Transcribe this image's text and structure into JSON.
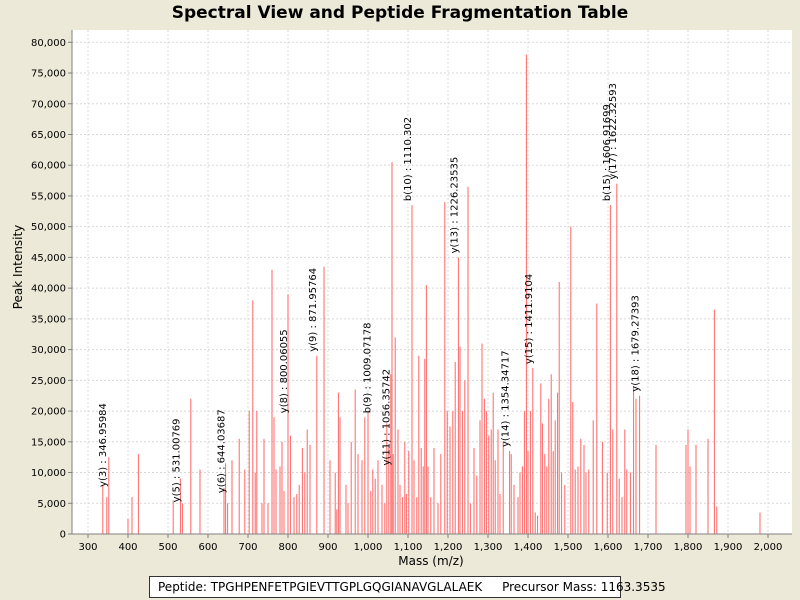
{
  "chart_data": {
    "type": "bar",
    "title": "Spectral View and Peptide Fragmentation Table",
    "xlabel": "Mass (m/z)",
    "ylabel": "Peak Intensity",
    "xlim": [
      260,
      2060
    ],
    "ylim": [
      0,
      82000
    ],
    "xticks": [
      300,
      400,
      500,
      600,
      700,
      800,
      900,
      1000,
      1100,
      1200,
      1300,
      1400,
      1500,
      1600,
      1700,
      1800,
      1900,
      2000
    ],
    "xtick_labels": [
      "300",
      "400",
      "500",
      "600",
      "700",
      "800",
      "900",
      "1,000",
      "1,100",
      "1,200",
      "1,300",
      "1,400",
      "1,500",
      "1,600",
      "1,700",
      "1,800",
      "1,900",
      "2,000"
    ],
    "yticks": [
      0,
      5000,
      10000,
      15000,
      20000,
      25000,
      30000,
      35000,
      40000,
      45000,
      50000,
      55000,
      60000,
      65000,
      70000,
      75000,
      80000
    ],
    "ytick_labels": [
      "0",
      "5,000",
      "10,000",
      "15,000",
      "20,000",
      "25,000",
      "30,000",
      "35,000",
      "40,000",
      "45,000",
      "50,000",
      "55,000",
      "60,000",
      "65,000",
      "70,000",
      "75,000",
      "80,000"
    ],
    "grid": true,
    "bar_color": "#ff6666",
    "peaks": [
      [
        337,
        8000
      ],
      [
        347,
        6000
      ],
      [
        352,
        12500
      ],
      [
        400,
        2500
      ],
      [
        410,
        6000
      ],
      [
        426,
        13000
      ],
      [
        513,
        5500
      ],
      [
        531,
        9000
      ],
      [
        536,
        5000
      ],
      [
        557,
        22000
      ],
      [
        580,
        10500
      ],
      [
        640,
        7500
      ],
      [
        644,
        11500
      ],
      [
        649,
        5000
      ],
      [
        660,
        12000
      ],
      [
        678,
        15500
      ],
      [
        692,
        10500
      ],
      [
        703,
        20000
      ],
      [
        712,
        38000
      ],
      [
        718,
        10000
      ],
      [
        722,
        20000
      ],
      [
        735,
        5000
      ],
      [
        740,
        15500
      ],
      [
        750,
        5000
      ],
      [
        760,
        43000
      ],
      [
        765,
        19000
      ],
      [
        770,
        10500
      ],
      [
        780,
        11000
      ],
      [
        785,
        15000
      ],
      [
        790,
        7000
      ],
      [
        800,
        39000
      ],
      [
        806,
        16000
      ],
      [
        815,
        6000
      ],
      [
        822,
        6500
      ],
      [
        828,
        8000
      ],
      [
        836,
        14000
      ],
      [
        842,
        10000
      ],
      [
        848,
        17000
      ],
      [
        855,
        14500
      ],
      [
        872,
        29000
      ],
      [
        890,
        43500
      ],
      [
        905,
        12000
      ],
      [
        918,
        10000
      ],
      [
        922,
        4000
      ],
      [
        926,
        23000
      ],
      [
        930,
        19000
      ],
      [
        945,
        8000
      ],
      [
        950,
        5000
      ],
      [
        958,
        15000
      ],
      [
        968,
        23500
      ],
      [
        975,
        13000
      ],
      [
        985,
        12000
      ],
      [
        992,
        19000
      ],
      [
        1000,
        20000
      ],
      [
        1007,
        7000
      ],
      [
        1012,
        10500
      ],
      [
        1018,
        9000
      ],
      [
        1025,
        12000
      ],
      [
        1035,
        8000
      ],
      [
        1042,
        5000
      ],
      [
        1047,
        18000
      ],
      [
        1052,
        14000
      ],
      [
        1057,
        26000
      ],
      [
        1060,
        60500
      ],
      [
        1063,
        13000
      ],
      [
        1068,
        32000
      ],
      [
        1075,
        17000
      ],
      [
        1080,
        8000
      ],
      [
        1086,
        6000
      ],
      [
        1092,
        15000
      ],
      [
        1096,
        6500
      ],
      [
        1102,
        13500
      ],
      [
        1110,
        53500
      ],
      [
        1115,
        12000
      ],
      [
        1122,
        6000
      ],
      [
        1127,
        29000
      ],
      [
        1133,
        14000
      ],
      [
        1138,
        11000
      ],
      [
        1142,
        28500
      ],
      [
        1146,
        40500
      ],
      [
        1150,
        11000
      ],
      [
        1157,
        6000
      ],
      [
        1165,
        14000
      ],
      [
        1175,
        5000
      ],
      [
        1182,
        13000
      ],
      [
        1192,
        54000
      ],
      [
        1198,
        20000
      ],
      [
        1205,
        17500
      ],
      [
        1212,
        20000
      ],
      [
        1218,
        28000
      ],
      [
        1226,
        45000
      ],
      [
        1230,
        30500
      ],
      [
        1236,
        20000
      ],
      [
        1242,
        25000
      ],
      [
        1250,
        56500
      ],
      [
        1256,
        5000
      ],
      [
        1265,
        14000
      ],
      [
        1272,
        9500
      ],
      [
        1280,
        18500
      ],
      [
        1285,
        31000
      ],
      [
        1291,
        22000
      ],
      [
        1296,
        20000
      ],
      [
        1302,
        16000
      ],
      [
        1308,
        17000
      ],
      [
        1313,
        23000
      ],
      [
        1318,
        12000
      ],
      [
        1325,
        17000
      ],
      [
        1330,
        6500
      ],
      [
        1338,
        15000
      ],
      [
        1354,
        13500
      ],
      [
        1358,
        13000
      ],
      [
        1365,
        8000
      ],
      [
        1375,
        6000
      ],
      [
        1380,
        10000
      ],
      [
        1386,
        11000
      ],
      [
        1391,
        20000
      ],
      [
        1396,
        78000
      ],
      [
        1400,
        13500
      ],
      [
        1406,
        20000
      ],
      [
        1412,
        27000
      ],
      [
        1418,
        3500
      ],
      [
        1424,
        3000
      ],
      [
        1432,
        24500
      ],
      [
        1436,
        18000
      ],
      [
        1442,
        13000
      ],
      [
        1447,
        11000
      ],
      [
        1452,
        22000
      ],
      [
        1458,
        26000
      ],
      [
        1463,
        13500
      ],
      [
        1468,
        18500
      ],
      [
        1474,
        23000
      ],
      [
        1478,
        41000
      ],
      [
        1484,
        10000
      ],
      [
        1492,
        8000
      ],
      [
        1507,
        50000
      ],
      [
        1512,
        21500
      ],
      [
        1518,
        10500
      ],
      [
        1525,
        11000
      ],
      [
        1532,
        15500
      ],
      [
        1540,
        14500
      ],
      [
        1545,
        10000
      ],
      [
        1552,
        10500
      ],
      [
        1563,
        18500
      ],
      [
        1572,
        37500
      ],
      [
        1586,
        15000
      ],
      [
        1598,
        10000
      ],
      [
        1606,
        53500
      ],
      [
        1612,
        17000
      ],
      [
        1622,
        57000
      ],
      [
        1628,
        9000
      ],
      [
        1635,
        6000
      ],
      [
        1642,
        17000
      ],
      [
        1647,
        10500
      ],
      [
        1656,
        10000
      ],
      [
        1664,
        24000
      ],
      [
        1670,
        22000
      ],
      [
        1679,
        22500
      ],
      [
        1720,
        14500
      ],
      [
        1795,
        14500
      ],
      [
        1800,
        17000
      ],
      [
        1805,
        11000
      ],
      [
        1820,
        14500
      ],
      [
        1850,
        15500
      ],
      [
        1866,
        36500
      ],
      [
        1872,
        4500
      ],
      [
        1980,
        3500
      ]
    ],
    "annotations": [
      {
        "mz": 346.95984,
        "y": 7000,
        "label": "y(3) : 346.95984"
      },
      {
        "mz": 531.00769,
        "y": 4500,
        "label": "y(5) : 531.00769"
      },
      {
        "mz": 644.03687,
        "y": 6000,
        "label": "y(6) : 644.03687"
      },
      {
        "mz": 800.06055,
        "y": 19000,
        "label": "y(8) : 800.06055"
      },
      {
        "mz": 871.95764,
        "y": 29000,
        "label": "y(9) : 871.95764"
      },
      {
        "mz": 1009.07178,
        "y": 19000,
        "label": "b(9) : 1009.07178"
      },
      {
        "mz": 1056.35742,
        "y": 10500,
        "label": "y(11) : 1056.35742"
      },
      {
        "mz": 1110.302,
        "y": 53500,
        "label": "b(10) : 1110.302"
      },
      {
        "mz": 1226.23535,
        "y": 45000,
        "label": "y(13) : 1226.23535"
      },
      {
        "mz": 1354.34717,
        "y": 13500,
        "label": "y(14) : 1354.34717"
      },
      {
        "mz": 1411.9104,
        "y": 27000,
        "label": "y(15) : 1411.9104"
      },
      {
        "mz": 1606.91699,
        "y": 53500,
        "label": "b(15) : 1606.91699"
      },
      {
        "mz": 1622.32593,
        "y": 57000,
        "label": "y(17) : 1622.32593"
      },
      {
        "mz": 1679.27393,
        "y": 22500,
        "label": "y(18) : 1679.27393"
      }
    ]
  },
  "footer": {
    "peptide_text": "Peptide: TPGHPENFETPGIEVTTGPLGQGIANAVGLALAEK",
    "precursor_text": "Precursor Mass: 1163.3535"
  }
}
